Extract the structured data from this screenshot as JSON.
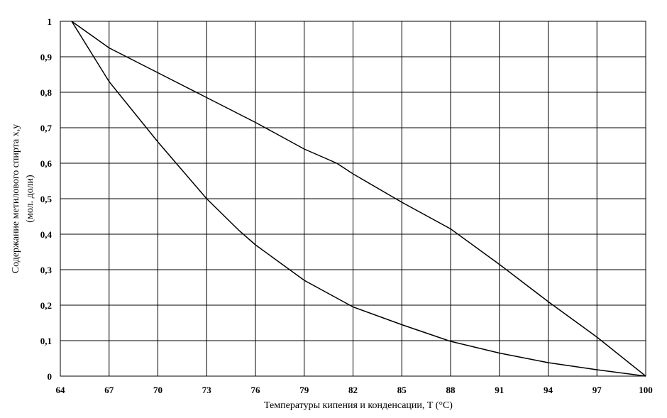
{
  "chart_data": {
    "type": "line",
    "xlabel": "Температуры кипения и конденсации,  T (°C)",
    "ylabel": "Содержание метилового спирта x,y",
    "ylabel_unit": "(мол. доли)",
    "xlim": [
      64,
      100
    ],
    "xticks": [
      64,
      67,
      70,
      73,
      76,
      79,
      82,
      85,
      88,
      91,
      94,
      97,
      100
    ],
    "ylim": [
      0,
      1
    ],
    "yticks": [
      0,
      {
        "value": 0.1,
        "label": "0,1"
      },
      {
        "value": 0.2,
        "label": "0,2"
      },
      {
        "value": 0.3,
        "label": "0,3"
      },
      {
        "value": 0.4,
        "label": "0,4"
      },
      {
        "value": 0.5,
        "label": "0,5"
      },
      {
        "value": 0.6,
        "label": "0,6"
      },
      {
        "value": 0.7,
        "label": "0,7"
      },
      {
        "value": 0.8,
        "label": "0,8"
      },
      {
        "value": 0.9,
        "label": "0,9"
      },
      1
    ],
    "grid": true,
    "series": [
      {
        "color": "#000000",
        "x": [
          64.7,
          67,
          70,
          73,
          75,
          76,
          79,
          82,
          85,
          88,
          91,
          94,
          97,
          100
        ],
        "values": [
          1,
          0.83,
          0.66,
          0.5,
          0.41,
          0.37,
          0.27,
          0.195,
          0.145,
          0.098,
          0.065,
          0.038,
          0.018,
          0
        ]
      },
      {
        "color": "#000000",
        "x": [
          64.7,
          67,
          70,
          73,
          76,
          79,
          81,
          82,
          85,
          88,
          91,
          94,
          97,
          100
        ],
        "values": [
          1,
          0.925,
          0.855,
          0.785,
          0.715,
          0.64,
          0.6,
          0.57,
          0.49,
          0.415,
          0.315,
          0.21,
          0.11,
          0
        ]
      }
    ]
  }
}
